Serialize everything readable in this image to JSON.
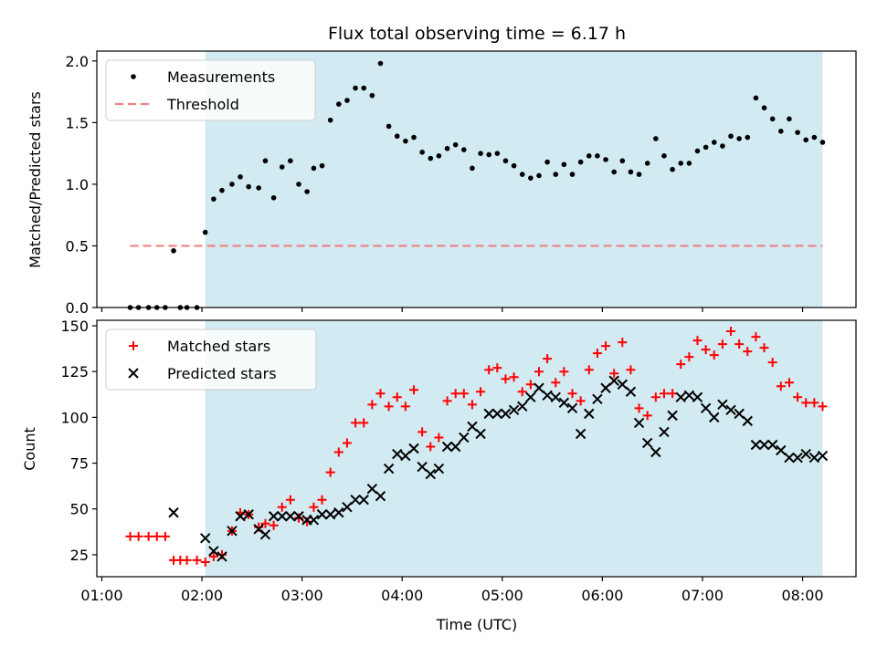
{
  "chart_data": [
    {
      "type": "scatter",
      "title": "Flux total observing time = 6.17 h",
      "xlabel": "",
      "ylabel": "Matched/Predicted stars",
      "x_format": "HH:MM (UTC)",
      "xlim": [
        "00:57",
        "08:32"
      ],
      "ylim": [
        0,
        2.08
      ],
      "yticks": [
        "0.0",
        "0.5",
        "1.0",
        "1.5",
        "2.0"
      ],
      "shaded_region": {
        "from": "02:02",
        "to": "08:12",
        "color": "#add8e6"
      },
      "legend": {
        "placement": "top-left",
        "entries": [
          "Measurements",
          "Threshold"
        ]
      },
      "series": [
        {
          "name": "Measurements",
          "marker": "dot",
          "color": "#000000",
          "x": [
            "01:17",
            "01:22",
            "01:28",
            "01:33",
            "01:38",
            "01:43",
            "01:47",
            "01:51",
            "01:57",
            "02:02",
            "02:07",
            "02:12",
            "02:18",
            "02:23",
            "02:28",
            "02:34",
            "02:38",
            "02:43",
            "02:48",
            "02:53",
            "02:58",
            "03:03",
            "03:07",
            "03:12",
            "03:17",
            "03:22",
            "03:27",
            "03:32",
            "03:37",
            "03:42",
            "03:47",
            "03:52",
            "03:57",
            "04:02",
            "04:07",
            "04:12",
            "04:17",
            "04:22",
            "04:27",
            "04:32",
            "04:37",
            "04:42",
            "04:47",
            "04:52",
            "04:57",
            "05:02",
            "05:07",
            "05:12",
            "05:17",
            "05:22",
            "05:27",
            "05:32",
            "05:37",
            "05:42",
            "05:47",
            "05:52",
            "05:57",
            "06:02",
            "06:07",
            "06:12",
            "06:17",
            "06:22",
            "06:27",
            "06:32",
            "06:37",
            "06:42",
            "06:47",
            "06:52",
            "06:57",
            "07:02",
            "07:07",
            "07:12",
            "07:17",
            "07:22",
            "07:27",
            "07:32",
            "07:37",
            "07:42",
            "07:47",
            "07:52",
            "07:57",
            "08:02",
            "08:07",
            "08:12"
          ],
          "y": [
            0.0,
            0.0,
            0.0,
            0.0,
            0.0,
            0.46,
            0.0,
            0.0,
            0.0,
            0.61,
            0.88,
            0.95,
            1.0,
            1.06,
            0.98,
            0.97,
            1.19,
            0.89,
            1.14,
            1.19,
            1.0,
            0.94,
            1.13,
            1.15,
            1.52,
            1.65,
            1.68,
            1.78,
            1.78,
            1.72,
            1.98,
            1.47,
            1.39,
            1.35,
            1.38,
            1.26,
            1.21,
            1.23,
            1.29,
            1.32,
            1.28,
            1.13,
            1.25,
            1.24,
            1.25,
            1.19,
            1.15,
            1.08,
            1.05,
            1.07,
            1.18,
            1.08,
            1.16,
            1.08,
            1.18,
            1.23,
            1.23,
            1.2,
            1.1,
            1.19,
            1.1,
            1.08,
            1.17,
            1.37,
            1.23,
            1.12,
            1.17,
            1.17,
            1.27,
            1.3,
            1.34,
            1.31,
            1.39,
            1.37,
            1.38,
            1.7,
            1.62,
            1.53,
            1.43,
            1.53,
            1.42,
            1.36,
            1.38,
            1.34
          ]
        },
        {
          "name": "Threshold",
          "style": "dashed",
          "color": "#f08080",
          "x": [
            "01:17",
            "08:12"
          ],
          "y": [
            0.5,
            0.5
          ]
        }
      ]
    },
    {
      "type": "scatter",
      "title": "",
      "xlabel": "Time (UTC)",
      "ylabel": "Count",
      "x_format": "HH:MM (UTC)",
      "xlim": [
        "00:57",
        "08:32"
      ],
      "xticks": [
        "01:00",
        "02:00",
        "03:00",
        "04:00",
        "05:00",
        "06:00",
        "07:00",
        "08:00"
      ],
      "ylim": [
        13,
        153
      ],
      "yticks": [
        "25",
        "50",
        "75",
        "100",
        "125",
        "150"
      ],
      "shaded_region": {
        "from": "02:02",
        "to": "08:12",
        "color": "#add8e6"
      },
      "legend": {
        "placement": "top-left",
        "entries": [
          "Matched stars",
          "Predicted stars"
        ]
      },
      "series": [
        {
          "name": "Matched stars",
          "marker": "plus",
          "color": "#ff0000",
          "x": [
            "01:17",
            "01:22",
            "01:28",
            "01:33",
            "01:38",
            "01:43",
            "01:47",
            "01:51",
            "01:57",
            "02:02",
            "02:07",
            "02:12",
            "02:18",
            "02:23",
            "02:28",
            "02:34",
            "02:38",
            "02:43",
            "02:48",
            "02:53",
            "02:58",
            "03:03",
            "03:07",
            "03:12",
            "03:17",
            "03:22",
            "03:27",
            "03:32",
            "03:37",
            "03:42",
            "03:47",
            "03:52",
            "03:57",
            "04:02",
            "04:07",
            "04:12",
            "04:17",
            "04:22",
            "04:27",
            "04:32",
            "04:37",
            "04:42",
            "04:47",
            "04:52",
            "04:57",
            "05:02",
            "05:07",
            "05:12",
            "05:17",
            "05:22",
            "05:27",
            "05:32",
            "05:37",
            "05:42",
            "05:47",
            "05:52",
            "05:57",
            "06:02",
            "06:07",
            "06:12",
            "06:17",
            "06:22",
            "06:27",
            "06:32",
            "06:37",
            "06:42",
            "06:47",
            "06:52",
            "06:57",
            "07:02",
            "07:07",
            "07:12",
            "07:17",
            "07:22",
            "07:27",
            "07:32",
            "07:37",
            "07:42",
            "07:47",
            "07:52",
            "07:57",
            "08:02",
            "08:07",
            "08:12"
          ],
          "y": [
            35,
            35,
            35,
            35,
            35,
            22,
            22,
            22,
            22,
            21,
            24,
            25,
            38,
            48,
            47,
            40,
            42,
            41,
            51,
            55,
            45,
            43,
            51,
            55,
            70,
            81,
            86,
            97,
            97,
            107,
            113,
            106,
            111,
            106,
            115,
            92,
            84,
            89,
            109,
            113,
            113,
            107,
            114,
            126,
            127,
            121,
            122,
            114,
            118,
            125,
            132,
            119,
            125,
            113,
            109,
            126,
            135,
            139,
            124,
            141,
            126,
            105,
            101,
            111,
            113,
            113,
            129,
            133,
            142,
            137,
            134,
            140,
            147,
            140,
            136,
            144,
            138,
            130,
            117,
            119,
            111,
            108,
            108,
            106
          ]
        },
        {
          "name": "Predicted stars",
          "marker": "x",
          "color": "#000000",
          "x": [
            "01:43",
            "02:02",
            "02:07",
            "02:12",
            "02:18",
            "02:23",
            "02:28",
            "02:34",
            "02:38",
            "02:43",
            "02:48",
            "02:53",
            "02:58",
            "03:03",
            "03:07",
            "03:12",
            "03:17",
            "03:22",
            "03:27",
            "03:32",
            "03:37",
            "03:42",
            "03:47",
            "03:52",
            "03:57",
            "04:02",
            "04:07",
            "04:12",
            "04:17",
            "04:22",
            "04:27",
            "04:32",
            "04:37",
            "04:42",
            "04:47",
            "04:52",
            "04:57",
            "05:02",
            "05:07",
            "05:12",
            "05:17",
            "05:22",
            "05:27",
            "05:32",
            "05:37",
            "05:42",
            "05:47",
            "05:52",
            "05:57",
            "06:02",
            "06:07",
            "06:12",
            "06:17",
            "06:22",
            "06:27",
            "06:32",
            "06:37",
            "06:42",
            "06:47",
            "06:52",
            "06:57",
            "07:02",
            "07:07",
            "07:12",
            "07:17",
            "07:22",
            "07:27",
            "07:32",
            "07:37",
            "07:42",
            "07:47",
            "07:52",
            "07:57",
            "08:02",
            "08:07",
            "08:12"
          ],
          "y": [
            48,
            34,
            27,
            24,
            38,
            46,
            47,
            39,
            36,
            46,
            46,
            46,
            46,
            44,
            44,
            47,
            47,
            48,
            51,
            55,
            55,
            61,
            57,
            72,
            80,
            79,
            83,
            73,
            69,
            72,
            84,
            84,
            89,
            95,
            91,
            102,
            102,
            102,
            104,
            106,
            111,
            116,
            112,
            111,
            108,
            105,
            91,
            102,
            110,
            116,
            120,
            118,
            114,
            97,
            86,
            81,
            92,
            101,
            111,
            112,
            111,
            105,
            100,
            107,
            104,
            102,
            98,
            85,
            85,
            85,
            82,
            78,
            78,
            80,
            78,
            79
          ]
        }
      ]
    }
  ]
}
